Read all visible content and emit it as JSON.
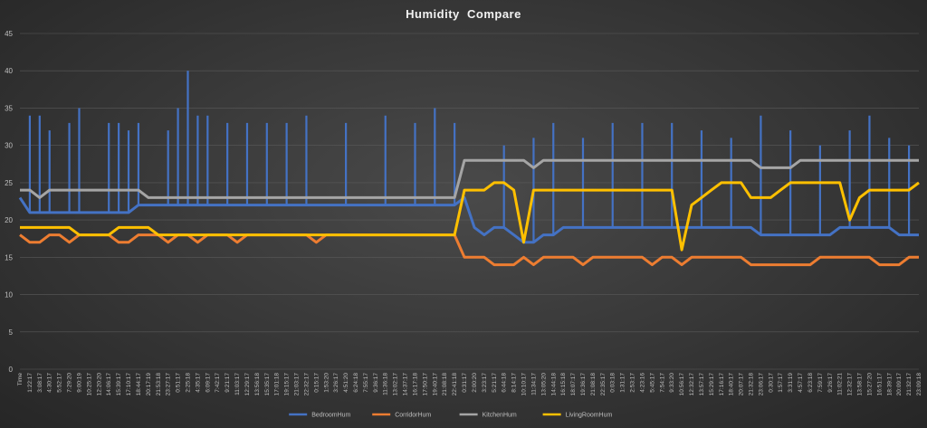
{
  "chart_data": {
    "type": "line",
    "title": "Humidity  Compare",
    "xlabel": "",
    "ylabel": "",
    "ylim": [
      0,
      45
    ],
    "yticks": [
      0,
      5,
      10,
      15,
      20,
      25,
      30,
      35,
      40,
      45
    ],
    "grid": true,
    "legend_position": "bottom",
    "x": [
      "Time",
      "1:22:17",
      "3:08:17",
      "4:30:17",
      "5:52:17",
      "7:29:20",
      "9:00:19",
      "10:25:17",
      "12:20:20",
      "14:06:17",
      "15:39:17",
      "17:10:17",
      "18:44:17",
      "20:17:19",
      "21:53:18",
      "23:27:17",
      "0:51:17",
      "2:25:18",
      "4:35:17",
      "6:09:17",
      "7:42:17",
      "9:21:17",
      "11:03:17",
      "12:29:17",
      "13:56:18",
      "15:35:17",
      "17:01:18",
      "19:15:17",
      "21:03:17",
      "22:32:17",
      "0:15:17",
      "1:53:20",
      "3:26:17",
      "4:51:20",
      "6:24:18",
      "7:55:17",
      "9:36:17",
      "11:36:18",
      "13:02:17",
      "14:37:17",
      "16:17:18",
      "17:50:17",
      "19:40:17",
      "21:08:18",
      "22:41:18",
      "0:31:17",
      "2:00:20",
      "3:23:17",
      "5:21:17",
      "6:44:18",
      "8:14:17",
      "10:10:17",
      "11:34:17",
      "13:05:20",
      "14:44:18",
      "16:15:18",
      "18:07:17",
      "19:36:17",
      "21:08:18",
      "22:35:17",
      "0:03:18",
      "1:31:17",
      "2:53:17",
      "4:23:16",
      "5:45:17",
      "7:54:17",
      "9:33:20",
      "10:56:17",
      "12:32:17",
      "13:57:17",
      "15:29:17",
      "17:16:17",
      "18:40:17",
      "20:07:17",
      "21:32:18",
      "23:06:17",
      "0:30:17",
      "1:57:17",
      "3:31:19",
      "4:57:17",
      "6:23:18",
      "7:59:17",
      "9:26:17",
      "11:02:21",
      "12:32:17",
      "13:58:17",
      "15:27:20",
      "16:51:17",
      "18:39:17",
      "20:09:17",
      "21:32:17",
      "23:09:18"
    ],
    "series": [
      {
        "name": "BedroomHum",
        "color": "#4472c4",
        "values": [
          23,
          21,
          21,
          21,
          21,
          21,
          21,
          21,
          21,
          21,
          21,
          21,
          22,
          22,
          22,
          22,
          22,
          22,
          22,
          22,
          22,
          22,
          22,
          22,
          22,
          22,
          22,
          22,
          22,
          22,
          22,
          22,
          22,
          22,
          22,
          22,
          22,
          22,
          22,
          22,
          22,
          22,
          22,
          22,
          22,
          23,
          19,
          18,
          19,
          19,
          18,
          17,
          17,
          18,
          18,
          19,
          19,
          19,
          19,
          19,
          19,
          19,
          19,
          19,
          19,
          19,
          19,
          19,
          19,
          19,
          19,
          19,
          19,
          19,
          19,
          18,
          18,
          18,
          18,
          18,
          18,
          18,
          18,
          19,
          19,
          19,
          19,
          19,
          19,
          18,
          18,
          18
        ],
        "spikes": [
          [
            1,
            34
          ],
          [
            2,
            34
          ],
          [
            3,
            32
          ],
          [
            5,
            33
          ],
          [
            6,
            35
          ],
          [
            9,
            33
          ],
          [
            10,
            33
          ],
          [
            11,
            32
          ],
          [
            12,
            33
          ],
          [
            15,
            32
          ],
          [
            16,
            35
          ],
          [
            17,
            40
          ],
          [
            18,
            34
          ],
          [
            19,
            34
          ],
          [
            21,
            33
          ],
          [
            23,
            33
          ],
          [
            25,
            33
          ],
          [
            27,
            33
          ],
          [
            29,
            34
          ],
          [
            33,
            33
          ],
          [
            37,
            34
          ],
          [
            40,
            33
          ],
          [
            42,
            35
          ],
          [
            44,
            33
          ],
          [
            49,
            30
          ],
          [
            52,
            31
          ],
          [
            54,
            33
          ],
          [
            57,
            31
          ],
          [
            60,
            33
          ],
          [
            63,
            33
          ],
          [
            66,
            33
          ],
          [
            69,
            32
          ],
          [
            72,
            31
          ],
          [
            75,
            34
          ],
          [
            78,
            32
          ],
          [
            81,
            30
          ],
          [
            84,
            32
          ],
          [
            86,
            34
          ],
          [
            88,
            31
          ],
          [
            90,
            30
          ]
        ]
      },
      {
        "name": "CorridorHum",
        "color": "#ed7d31",
        "values": [
          18,
          17,
          17,
          18,
          18,
          17,
          18,
          18,
          18,
          18,
          17,
          17,
          18,
          18,
          18,
          17,
          18,
          18,
          17,
          18,
          18,
          18,
          17,
          18,
          18,
          18,
          18,
          18,
          18,
          18,
          17,
          18,
          18,
          18,
          18,
          18,
          18,
          18,
          18,
          18,
          18,
          18,
          18,
          18,
          18,
          15,
          15,
          15,
          14,
          14,
          14,
          15,
          14,
          15,
          15,
          15,
          15,
          14,
          15,
          15,
          15,
          15,
          15,
          15,
          14,
          15,
          15,
          14,
          15,
          15,
          15,
          15,
          15,
          15,
          14,
          14,
          14,
          14,
          14,
          14,
          14,
          15,
          15,
          15,
          15,
          15,
          15,
          14,
          14,
          14,
          15,
          15
        ]
      },
      {
        "name": "KitchenHum",
        "color": "#a5a5a5",
        "values": [
          24,
          24,
          23,
          24,
          24,
          24,
          24,
          24,
          24,
          24,
          24,
          24,
          24,
          23,
          23,
          23,
          23,
          23,
          23,
          23,
          23,
          23,
          23,
          23,
          23,
          23,
          23,
          23,
          23,
          23,
          23,
          23,
          23,
          23,
          23,
          23,
          23,
          23,
          23,
          23,
          23,
          23,
          23,
          23,
          23,
          28,
          28,
          28,
          28,
          28,
          28,
          28,
          27,
          28,
          28,
          28,
          28,
          28,
          28,
          28,
          28,
          28,
          28,
          28,
          28,
          28,
          28,
          28,
          28,
          28,
          28,
          28,
          28,
          28,
          28,
          27,
          27,
          27,
          27,
          28,
          28,
          28,
          28,
          28,
          28,
          28,
          28,
          28,
          28,
          28,
          28,
          28
        ]
      },
      {
        "name": "LivingRoomHum",
        "color": "#ffc000",
        "values": [
          19,
          19,
          19,
          19,
          19,
          19,
          18,
          18,
          18,
          18,
          19,
          19,
          19,
          19,
          18,
          18,
          18,
          18,
          18,
          18,
          18,
          18,
          18,
          18,
          18,
          18,
          18,
          18,
          18,
          18,
          18,
          18,
          18,
          18,
          18,
          18,
          18,
          18,
          18,
          18,
          18,
          18,
          18,
          18,
          18,
          24,
          24,
          24,
          25,
          25,
          24,
          17,
          24,
          24,
          24,
          24,
          24,
          24,
          24,
          24,
          24,
          24,
          24,
          24,
          24,
          24,
          24,
          16,
          22,
          23,
          24,
          25,
          25,
          25,
          23,
          23,
          23,
          24,
          25,
          25,
          25,
          25,
          25,
          25,
          20,
          23,
          24,
          24,
          24,
          24,
          24,
          25
        ]
      }
    ]
  }
}
